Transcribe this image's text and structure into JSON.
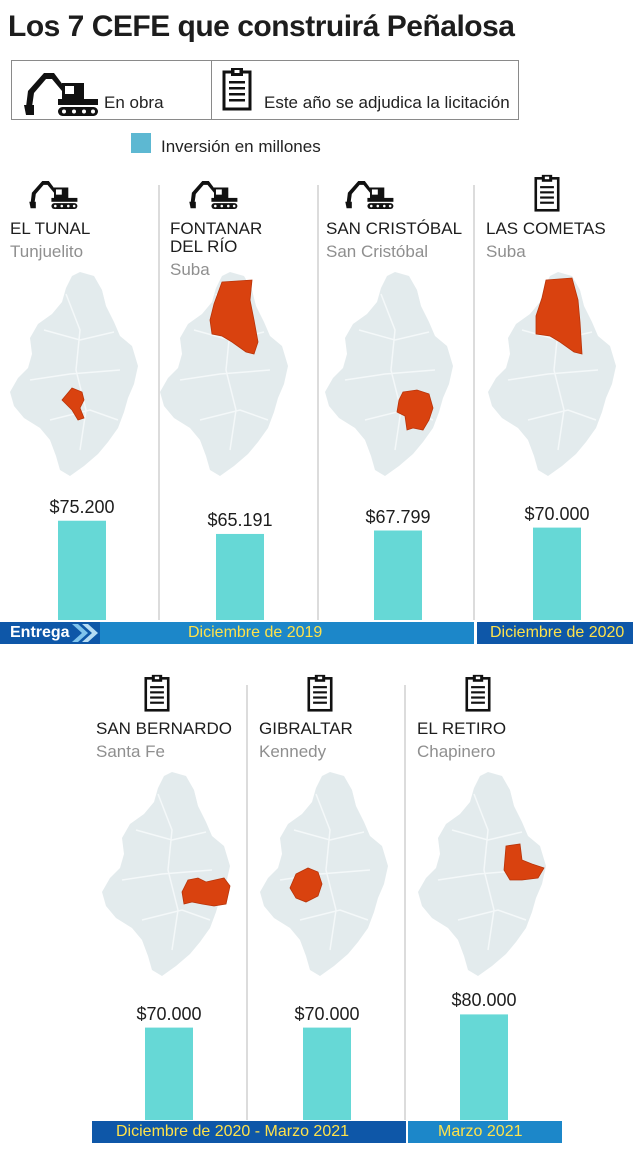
{
  "title": "Los 7 CEFE que construirá Peñalosa",
  "legend": {
    "items": [
      {
        "icon": "excavator-icon",
        "label": "En obra"
      },
      {
        "icon": "clipboard-icon",
        "label": "Este año se adjudica la licitación"
      }
    ],
    "investment_label": "Inversión en millones"
  },
  "colors": {
    "bar": "#66d8d6",
    "highlight": "#d9420f",
    "map": "#e4ecee",
    "timebar": "#1c87c9",
    "timebar_dark": "#0e57a8",
    "timebar_text": "#ffe24a"
  },
  "chart_data": {
    "type": "bar",
    "categories": [
      "EL TUNAL",
      "FONTANAR DEL RÍO",
      "SAN CRISTÓBAL",
      "LAS COMETAS",
      "SAN BERNARDO",
      "GIBRALTAR",
      "EL RETIRO"
    ],
    "values": [
      75200,
      65191,
      67799,
      70000,
      70000,
      70000,
      80000
    ],
    "value_labels": [
      "$75.200",
      "$65.191",
      "$67.799",
      "$70.000",
      "$70.000",
      "$70.000",
      "$80.000"
    ],
    "locations": [
      "Tunjuelito",
      "Suba",
      "San Cristóbal",
      "Suba",
      "Santa Fe",
      "Kennedy",
      "Chapinero"
    ],
    "status_icons": [
      "excavator-icon",
      "excavator-icon",
      "excavator-icon",
      "clipboard-icon",
      "clipboard-icon",
      "clipboard-icon",
      "clipboard-icon"
    ],
    "name_lines": [
      [
        "EL TUNAL"
      ],
      [
        "FONTANAR",
        "DEL RÍO"
      ],
      [
        "SAN CRISTÓBAL"
      ],
      [
        "LAS COMETAS"
      ],
      [
        "SAN BERNARDO"
      ],
      [
        "GIBRALTAR"
      ],
      [
        "EL RETIRO"
      ]
    ],
    "series_label": "Inversión en millones"
  },
  "timeline": {
    "entrega_label": "Entrega",
    "periods": [
      "Diciembre de 2019",
      "Diciembre de 2020",
      "Diciembre de 2020 - Marzo 2021",
      "Marzo 2021"
    ]
  }
}
